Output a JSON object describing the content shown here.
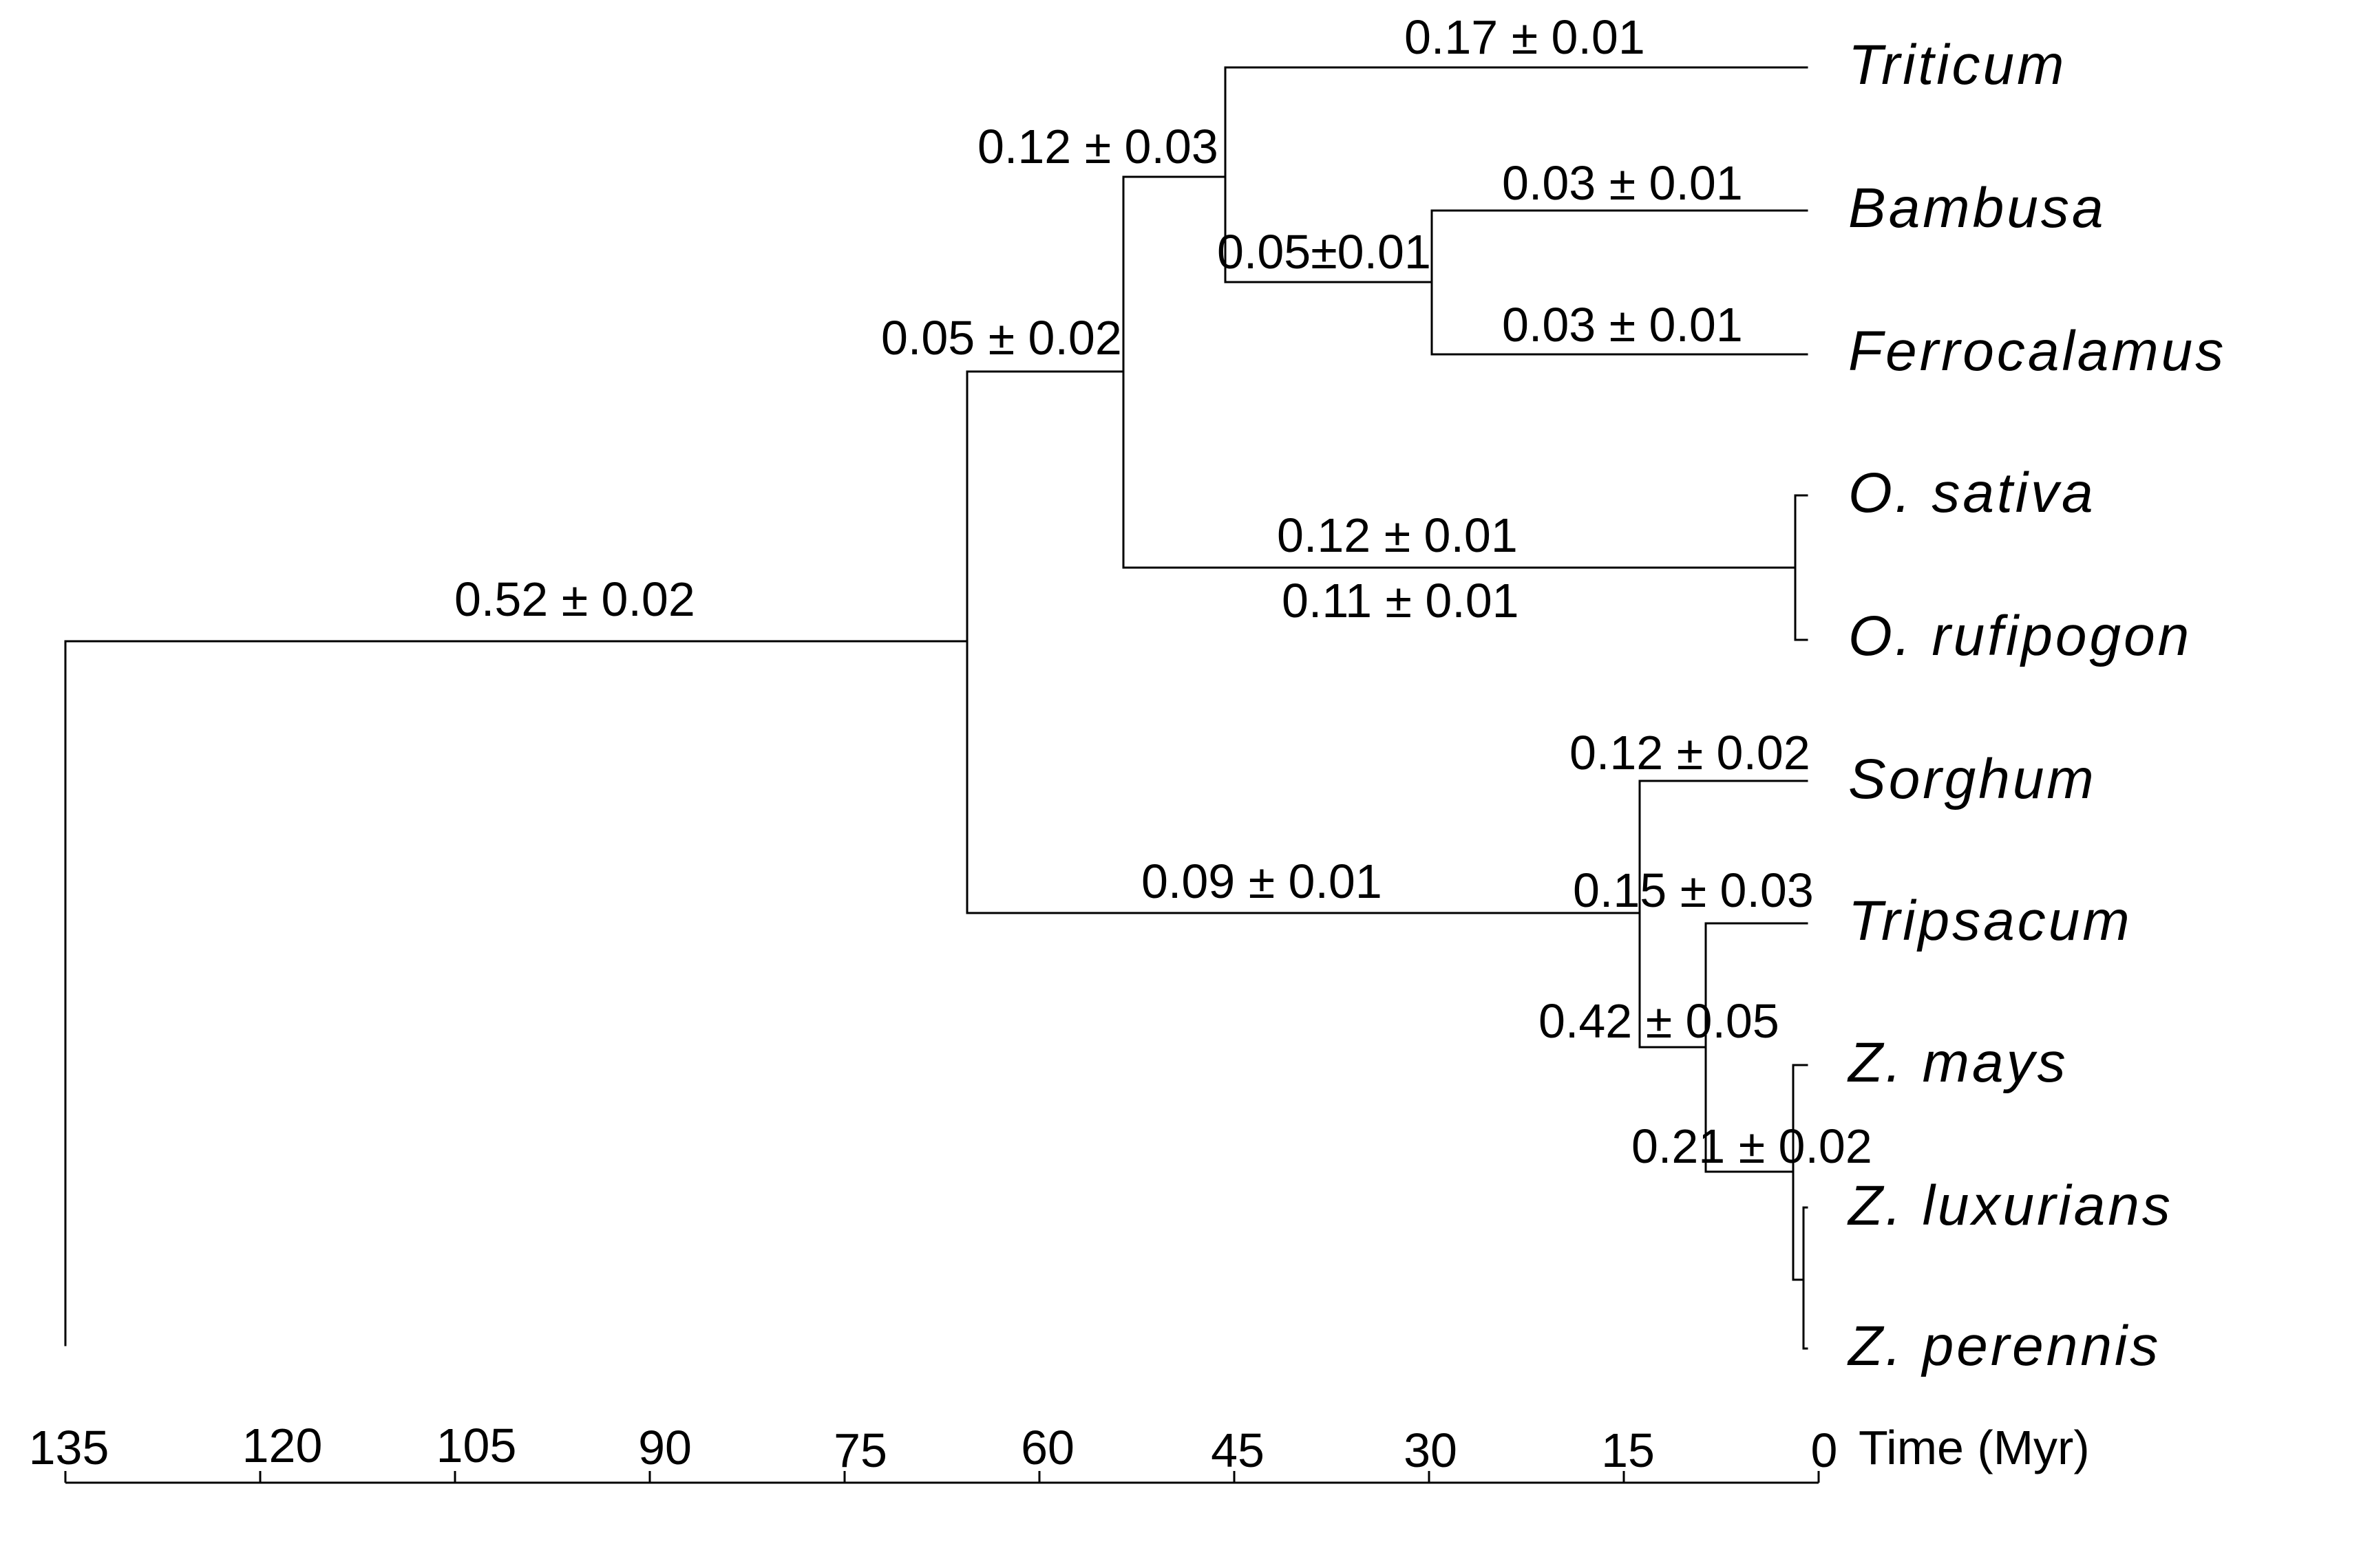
{
  "taxa": [
    "Triticum",
    "Bambusa",
    "Ferrocalamus",
    "O. sativa",
    "O. rufipogon",
    "Sorghum",
    "Tripsacum",
    "Z. mays",
    "Z. luxurians",
    "Z. perennis"
  ],
  "rates": {
    "root": "0.52 ± 0.02",
    "core_node": "0.05 ± 0.02",
    "pooideae_bamboo_node": "0.12 ± 0.03",
    "bamboo_node": "0.05±0.01",
    "triticum": "0.17 ± 0.01",
    "bambusa": "0.03 ± 0.01",
    "ferrocalamus": "0.03 ± 0.01",
    "oryza_sativa": "0.12 ± 0.01",
    "oryza_rufipogon": "0.11 ± 0.01",
    "panicoid_branch": "0.09 ± 0.01",
    "sorghum": "0.12 ± 0.02",
    "tripsacum": "0.15 ± 0.03",
    "andropogoneae_node": "0.42 ± 0.05",
    "zea_node": "0.21 ± 0.02"
  },
  "axis": {
    "title": "Time (Myr)",
    "ticks": [
      "135",
      "120",
      "105",
      "90",
      "75",
      "60",
      "45",
      "30",
      "15",
      "0"
    ]
  }
}
